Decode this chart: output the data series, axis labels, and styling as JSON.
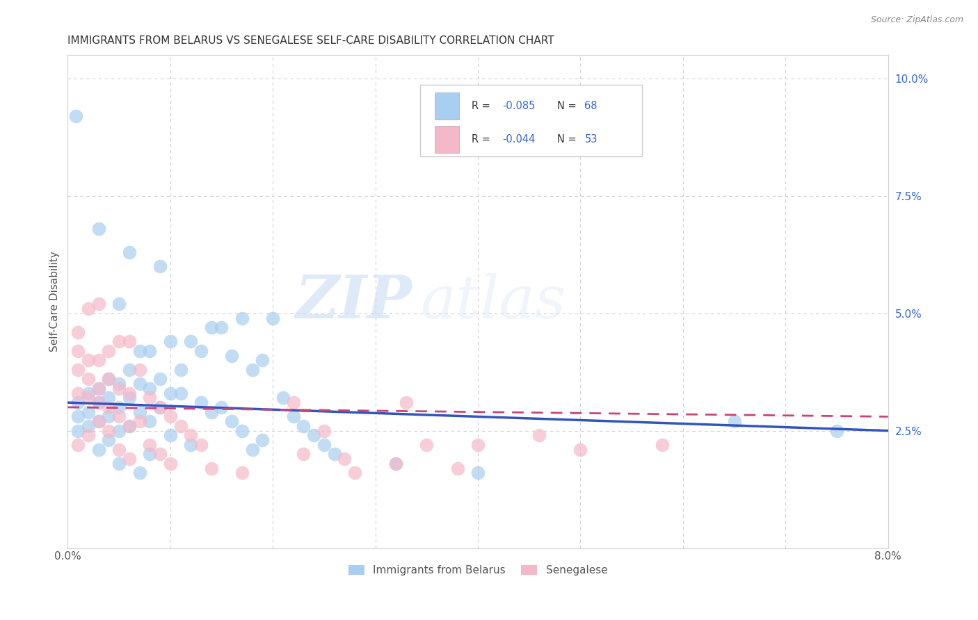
{
  "title": "IMMIGRANTS FROM BELARUS VS SENEGALESE SELF-CARE DISABILITY CORRELATION CHART",
  "source": "Source: ZipAtlas.com",
  "ylabel": "Self-Care Disability",
  "r_belarus": -0.085,
  "n_belarus": 68,
  "r_senegal": -0.044,
  "n_senegal": 53,
  "xlim": [
    0.0,
    0.08
  ],
  "ylim": [
    0.0,
    0.105
  ],
  "color_belarus": "#a8cef0",
  "color_senegal": "#f4b8c8",
  "line_color_belarus": "#3355bb",
  "line_color_senegal": "#cc4477",
  "watermark_zip": "ZIP",
  "watermark_atlas": "atlas",
  "trendline_belarus_x0": 0.0,
  "trendline_belarus_y0": 0.031,
  "trendline_belarus_x1": 0.08,
  "trendline_belarus_y1": 0.025,
  "trendline_senegal_x0": 0.0,
  "trendline_senegal_y0": 0.03,
  "trendline_senegal_x1": 0.08,
  "trendline_senegal_y1": 0.028,
  "belarus_points": [
    [
      0.0008,
      0.092
    ],
    [
      0.003,
      0.068
    ],
    [
      0.006,
      0.063
    ],
    [
      0.009,
      0.06
    ],
    [
      0.005,
      0.052
    ],
    [
      0.017,
      0.049
    ],
    [
      0.02,
      0.049
    ],
    [
      0.014,
      0.047
    ],
    [
      0.015,
      0.047
    ],
    [
      0.01,
      0.044
    ],
    [
      0.012,
      0.044
    ],
    [
      0.007,
      0.042
    ],
    [
      0.008,
      0.042
    ],
    [
      0.013,
      0.042
    ],
    [
      0.016,
      0.041
    ],
    [
      0.019,
      0.04
    ],
    [
      0.006,
      0.038
    ],
    [
      0.011,
      0.038
    ],
    [
      0.018,
      0.038
    ],
    [
      0.004,
      0.036
    ],
    [
      0.009,
      0.036
    ],
    [
      0.005,
      0.035
    ],
    [
      0.007,
      0.035
    ],
    [
      0.003,
      0.034
    ],
    [
      0.008,
      0.034
    ],
    [
      0.002,
      0.033
    ],
    [
      0.01,
      0.033
    ],
    [
      0.011,
      0.033
    ],
    [
      0.004,
      0.032
    ],
    [
      0.006,
      0.032
    ],
    [
      0.021,
      0.032
    ],
    [
      0.001,
      0.031
    ],
    [
      0.003,
      0.031
    ],
    [
      0.013,
      0.031
    ],
    [
      0.005,
      0.03
    ],
    [
      0.009,
      0.03
    ],
    [
      0.015,
      0.03
    ],
    [
      0.002,
      0.029
    ],
    [
      0.007,
      0.029
    ],
    [
      0.014,
      0.029
    ],
    [
      0.001,
      0.028
    ],
    [
      0.004,
      0.028
    ],
    [
      0.022,
      0.028
    ],
    [
      0.003,
      0.027
    ],
    [
      0.008,
      0.027
    ],
    [
      0.016,
      0.027
    ],
    [
      0.002,
      0.026
    ],
    [
      0.006,
      0.026
    ],
    [
      0.023,
      0.026
    ],
    [
      0.001,
      0.025
    ],
    [
      0.005,
      0.025
    ],
    [
      0.017,
      0.025
    ],
    [
      0.01,
      0.024
    ],
    [
      0.024,
      0.024
    ],
    [
      0.004,
      0.023
    ],
    [
      0.019,
      0.023
    ],
    [
      0.012,
      0.022
    ],
    [
      0.025,
      0.022
    ],
    [
      0.003,
      0.021
    ],
    [
      0.018,
      0.021
    ],
    [
      0.008,
      0.02
    ],
    [
      0.026,
      0.02
    ],
    [
      0.005,
      0.018
    ],
    [
      0.032,
      0.018
    ],
    [
      0.007,
      0.016
    ],
    [
      0.04,
      0.016
    ],
    [
      0.075,
      0.025
    ],
    [
      0.065,
      0.027
    ]
  ],
  "senegal_points": [
    [
      0.001,
      0.046
    ],
    [
      0.003,
      0.052
    ],
    [
      0.002,
      0.051
    ],
    [
      0.005,
      0.044
    ],
    [
      0.006,
      0.044
    ],
    [
      0.001,
      0.042
    ],
    [
      0.004,
      0.042
    ],
    [
      0.002,
      0.04
    ],
    [
      0.003,
      0.04
    ],
    [
      0.001,
      0.038
    ],
    [
      0.007,
      0.038
    ],
    [
      0.002,
      0.036
    ],
    [
      0.004,
      0.036
    ],
    [
      0.003,
      0.034
    ],
    [
      0.005,
      0.034
    ],
    [
      0.001,
      0.033
    ],
    [
      0.006,
      0.033
    ],
    [
      0.002,
      0.032
    ],
    [
      0.008,
      0.032
    ],
    [
      0.003,
      0.031
    ],
    [
      0.022,
      0.031
    ],
    [
      0.033,
      0.031
    ],
    [
      0.004,
      0.03
    ],
    [
      0.009,
      0.03
    ],
    [
      0.005,
      0.028
    ],
    [
      0.01,
      0.028
    ],
    [
      0.003,
      0.027
    ],
    [
      0.007,
      0.027
    ],
    [
      0.006,
      0.026
    ],
    [
      0.011,
      0.026
    ],
    [
      0.004,
      0.025
    ],
    [
      0.025,
      0.025
    ],
    [
      0.002,
      0.024
    ],
    [
      0.012,
      0.024
    ],
    [
      0.001,
      0.022
    ],
    [
      0.008,
      0.022
    ],
    [
      0.013,
      0.022
    ],
    [
      0.005,
      0.021
    ],
    [
      0.009,
      0.02
    ],
    [
      0.023,
      0.02
    ],
    [
      0.006,
      0.019
    ],
    [
      0.027,
      0.019
    ],
    [
      0.01,
      0.018
    ],
    [
      0.032,
      0.018
    ],
    [
      0.014,
      0.017
    ],
    [
      0.038,
      0.017
    ],
    [
      0.017,
      0.016
    ],
    [
      0.028,
      0.016
    ],
    [
      0.04,
      0.022
    ],
    [
      0.035,
      0.022
    ],
    [
      0.05,
      0.021
    ],
    [
      0.058,
      0.022
    ],
    [
      0.046,
      0.024
    ]
  ]
}
